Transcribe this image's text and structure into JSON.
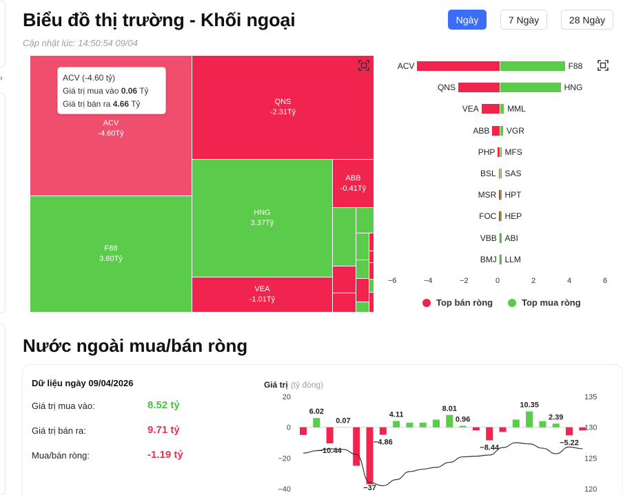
{
  "header": {
    "title": "Biểu đồ thị trường - Khối ngoại",
    "updated": "Cập nhật lúc: 14:50:54 09/04",
    "ranges": [
      "Ngày",
      "7 Ngày",
      "28 Ngày"
    ],
    "active_range": "Ngày"
  },
  "colors": {
    "sell": "#f0244d",
    "buy": "#5acb4a",
    "tooltip_tile": "#ef4f6d",
    "accent": "#3b6ef5"
  },
  "treemap": {
    "tiles": [
      {
        "name": "ACV",
        "value": -4.6,
        "label": "-4.60Tỷ"
      },
      {
        "name": "QNS",
        "value": -2.31,
        "label": "-2.31Tỷ"
      },
      {
        "name": "F88",
        "value": 3.6,
        "label": "3.60Tỷ"
      },
      {
        "name": "HNG",
        "value": 3.37,
        "label": "3.37Tỷ"
      },
      {
        "name": "VEA",
        "value": -1.01,
        "label": "-1.01Tỷ"
      },
      {
        "name": "ABB",
        "value": -0.41,
        "label": "-0.41Tỷ"
      }
    ],
    "tooltip": {
      "title": "ACV (-4.60 tỷ)",
      "buy_label": "Giá trị mua vào",
      "buy_value": "0.06",
      "sell_label": "Giá trị bán ra",
      "sell_value": "4.66",
      "unit": "Tỷ"
    }
  },
  "top_bars": {
    "sell_names": [
      "ACV",
      "QNS",
      "VEA",
      "ABB",
      "PHP",
      "BSL",
      "MSR",
      "FOC",
      "VBB",
      "BMJ"
    ],
    "sell_values": [
      -4.6,
      -2.31,
      -1.01,
      -0.41,
      -0.1,
      -0.05,
      -0.03,
      -0.02,
      -0.01,
      -0.01
    ],
    "buy_names": [
      "F88",
      "HNG",
      "MML",
      "VGR",
      "MFS",
      "SAS",
      "HPT",
      "HEP",
      "ABI",
      "LLM"
    ],
    "buy_values": [
      3.6,
      3.37,
      0.2,
      0.15,
      0.05,
      0.04,
      0.02,
      0.02,
      0.01,
      0.01
    ],
    "axis_ticks": [
      "−6",
      "−4",
      "−2",
      "0",
      "2",
      "4",
      "6"
    ],
    "xlim": [
      -6,
      6
    ],
    "legend": {
      "sell": "Top bán ròng",
      "buy": "Top mua ròng"
    }
  },
  "net_section": {
    "title": "Nước ngoài mua/bán ròng",
    "date_label": "Dữ liệu ngày 09/04/2026",
    "rows": [
      {
        "label": "Giá trị mua vào:",
        "value": "8.52 tỷ"
      },
      {
        "label": "Giá trị bán ra:",
        "value": "9.71 tỷ"
      },
      {
        "label": "Mua/bán ròng:",
        "value": "-1.19 tỷ"
      }
    ]
  },
  "chart_data": {
    "type": "bar",
    "title": "Giá trị",
    "unit": "(tỷ đồng)",
    "ylim": [
      -40,
      20
    ],
    "y_ticks": [
      "20",
      "0",
      "−20",
      "−40"
    ],
    "y2_lim": [
      120,
      135
    ],
    "y2_ticks": [
      "135",
      "130",
      "125",
      "120"
    ],
    "values": [
      -5,
      6.02,
      -10.44,
      0.07,
      -25,
      -37,
      -4.86,
      4.11,
      3,
      3,
      5,
      8.01,
      0.96,
      -2,
      -8.44,
      -3,
      5,
      10.35,
      4,
      2.39,
      -5.22,
      -2
    ],
    "line_values": [
      125.8,
      126.2,
      126.5,
      126.4,
      125.6,
      121.0,
      120.5,
      121.5,
      122.8,
      123.2,
      123.5,
      124.3,
      125.2,
      125.3,
      125.5,
      126.7,
      127.5,
      127.3,
      126.6,
      125.7,
      126.8,
      126.5
    ],
    "data_labels": [
      {
        "i": 1,
        "text": "6.02"
      },
      {
        "i": 2,
        "text": "−10.44"
      },
      {
        "i": 3,
        "text": "0.07"
      },
      {
        "i": 5,
        "text": "−37"
      },
      {
        "i": 6,
        "text": "−4.86"
      },
      {
        "i": 7,
        "text": "4.11"
      },
      {
        "i": 11,
        "text": "8.01"
      },
      {
        "i": 12,
        "text": "0.96"
      },
      {
        "i": 14,
        "text": "−8.44"
      },
      {
        "i": 17,
        "text": "10.35"
      },
      {
        "i": 19,
        "text": "2.39"
      },
      {
        "i": 20,
        "text": "−5.22"
      }
    ]
  }
}
